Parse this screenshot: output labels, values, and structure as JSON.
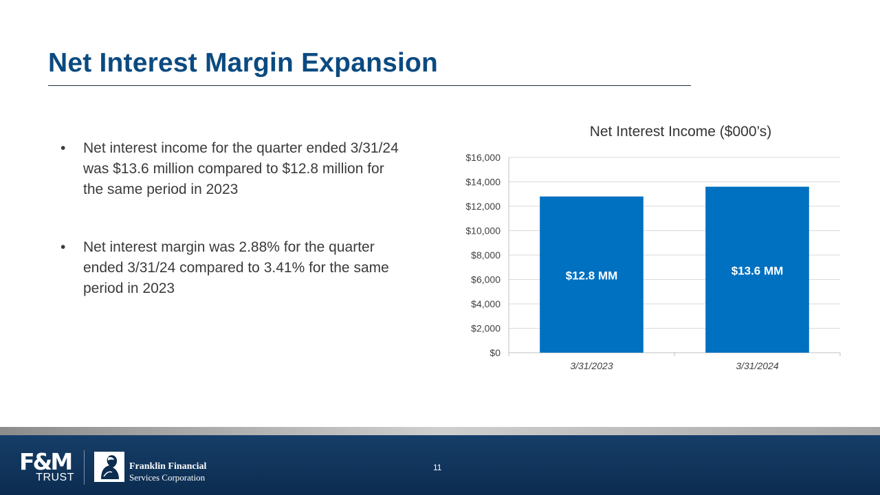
{
  "slide": {
    "title": "Net Interest Margin Expansion",
    "page_number": "11"
  },
  "bullets": [
    "Net interest income for the quarter ended 3/31/24 was $13.6 million compared to $12.8 million for the same period in 2023",
    "Net interest margin was 2.88% for the quarter ended 3/31/24 compared to 3.41% for the same period in 2023"
  ],
  "bullet_glyph": "•",
  "footer": {
    "logo_fm_main": "F&M",
    "logo_fm_sub": "TRUST",
    "logo_ffs_line1": "Franklin Financial",
    "logo_ffs_line2": "Services Corporation"
  },
  "colors": {
    "title": "#0b4a80",
    "bar": "#0070c0",
    "footer": "#0c2c50"
  },
  "chart_data": {
    "type": "bar",
    "title": "Net Interest Income ($000’s)",
    "categories": [
      "3/31/2023",
      "3/31/2024"
    ],
    "values": [
      12800,
      13600
    ],
    "data_labels": [
      "$12.8 MM",
      "$13.6 MM"
    ],
    "ylim": [
      0,
      16000
    ],
    "yticks": [
      0,
      2000,
      4000,
      6000,
      8000,
      10000,
      12000,
      14000,
      16000
    ],
    "ytick_labels": [
      "$0",
      "$2,000",
      "$4,000",
      "$6,000",
      "$8,000",
      "$10,000",
      "$12,000",
      "$14,000",
      "$16,000"
    ],
    "xlabel": "",
    "ylabel": "",
    "grid": true,
    "legend": "none"
  }
}
